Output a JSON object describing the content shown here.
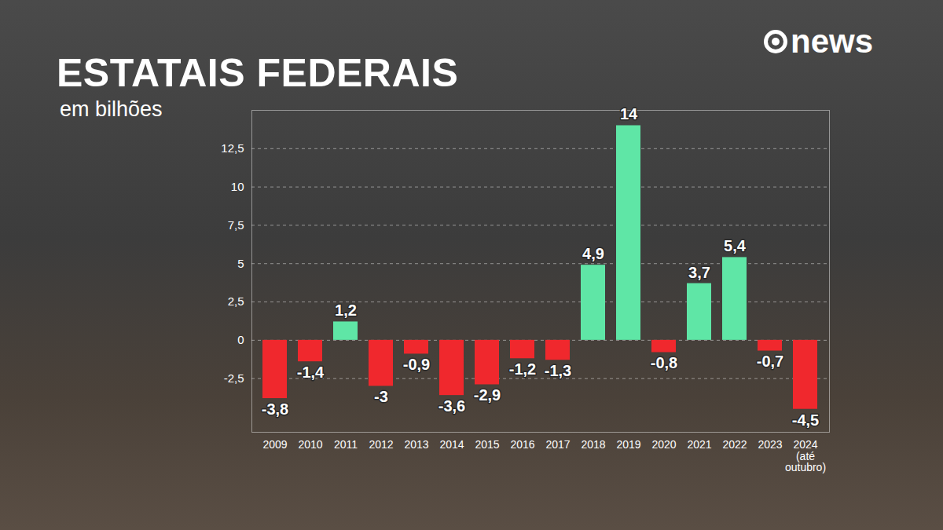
{
  "chart_data": {
    "type": "bar",
    "title": "ESTATAIS FEDERAIS",
    "subtitle": "em bilhões",
    "logo": "news",
    "categories": [
      "2009",
      "2010",
      "2011",
      "2012",
      "2013",
      "2014",
      "2015",
      "2016",
      "2017",
      "2018",
      "2019",
      "2020",
      "2021",
      "2022",
      "2023",
      "2024 (até outubro)"
    ],
    "values": [
      -3.8,
      -1.4,
      1.2,
      -3,
      -0.9,
      -3.6,
      -2.9,
      -1.2,
      -1.3,
      4.9,
      14,
      -0.8,
      3.7,
      5.4,
      -0.7,
      -4.5
    ],
    "value_labels": [
      "-3,8",
      "-1,4",
      "1,2",
      "-3",
      "-0,9",
      "-3,6",
      "-2,9",
      "-1,2",
      "-1,3",
      "4,9",
      "14",
      "-0,8",
      "3,7",
      "5,4",
      "-0,7",
      "-4,5"
    ],
    "colors": [
      "#f0282d",
      "#f0282d",
      "#5fe6a6",
      "#f0282d",
      "#f0282d",
      "#f0282d",
      "#f0282d",
      "#f0282d",
      "#f0282d",
      "#5fe6a6",
      "#5fe6a6",
      "#f0282d",
      "#5fe6a6",
      "#5fe6a6",
      "#f0282d",
      "#f0282d"
    ],
    "ylim": [
      -6,
      15
    ],
    "yticks": [
      {
        "value": -2.5,
        "label": "-2,5"
      },
      0,
      {
        "value": 2.5,
        "label": "2,5"
      },
      5,
      {
        "value": 7.5,
        "label": "7,5"
      },
      10,
      {
        "value": 12.5,
        "label": "12,5"
      }
    ],
    "grid": true,
    "data_labels": true
  }
}
